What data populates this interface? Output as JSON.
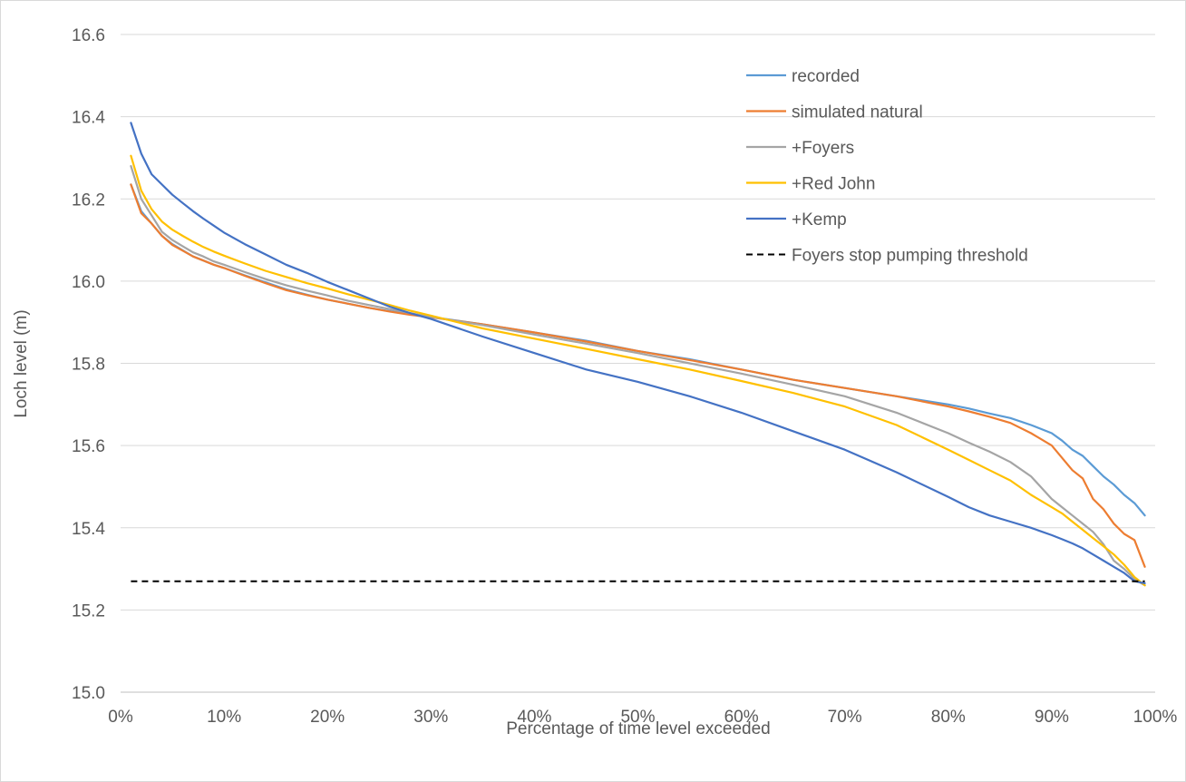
{
  "chart_data": {
    "type": "line",
    "title": "",
    "xlabel": "Percentage of time level exceeded",
    "ylabel": "Loch level (m)",
    "xlim": [
      0,
      100
    ],
    "ylim": [
      15.0,
      16.6
    ],
    "x_ticks": [
      0,
      10,
      20,
      30,
      40,
      50,
      60,
      70,
      80,
      90,
      100
    ],
    "x_tick_labels": [
      "0%",
      "10%",
      "20%",
      "30%",
      "40%",
      "50%",
      "60%",
      "70%",
      "80%",
      "90%",
      "100%"
    ],
    "y_ticks": [
      15.0,
      15.2,
      15.4,
      15.6,
      15.8,
      16.0,
      16.2,
      16.4,
      16.6
    ],
    "y_tick_labels": [
      "15.0",
      "15.2",
      "15.4",
      "15.6",
      "15.8",
      "16.0",
      "16.2",
      "16.4",
      "16.6"
    ],
    "grid": "horizontal",
    "legend_position": "top-right",
    "x": [
      1,
      2,
      3,
      4,
      5,
      6,
      7,
      8,
      9,
      10,
      12,
      14,
      16,
      18,
      20,
      22,
      24,
      26,
      28,
      30,
      35,
      40,
      45,
      50,
      55,
      60,
      65,
      70,
      75,
      80,
      82,
      84,
      86,
      88,
      90,
      91,
      92,
      93,
      94,
      95,
      96,
      97,
      98,
      99
    ],
    "series": [
      {
        "name": "recorded",
        "color": "#5B9BD5",
        "dashed": false,
        "values": [
          16.235,
          16.17,
          16.14,
          16.11,
          16.09,
          16.075,
          16.06,
          16.05,
          16.04,
          16.032,
          16.014,
          15.997,
          15.98,
          15.967,
          15.955,
          15.945,
          15.935,
          15.927,
          15.92,
          15.913,
          15.895,
          15.875,
          15.855,
          15.83,
          15.81,
          15.785,
          15.76,
          15.74,
          15.72,
          15.7,
          15.69,
          15.678,
          15.667,
          15.65,
          15.63,
          15.612,
          15.59,
          15.575,
          15.55,
          15.525,
          15.505,
          15.48,
          15.46,
          15.43
        ]
      },
      {
        "name": "simulated natural",
        "color": "#ED7D31",
        "dashed": false,
        "values": [
          16.235,
          16.165,
          16.14,
          16.11,
          16.088,
          16.074,
          16.06,
          16.05,
          16.04,
          16.032,
          16.013,
          15.995,
          15.978,
          15.966,
          15.955,
          15.945,
          15.935,
          15.926,
          15.918,
          15.912,
          15.895,
          15.875,
          15.853,
          15.83,
          15.808,
          15.785,
          15.76,
          15.74,
          15.72,
          15.695,
          15.683,
          15.67,
          15.655,
          15.63,
          15.6,
          15.57,
          15.54,
          15.52,
          15.47,
          15.445,
          15.41,
          15.385,
          15.37,
          15.305
        ]
      },
      {
        "name": "+Foyers",
        "color": "#A5A5A5",
        "dashed": false,
        "values": [
          16.28,
          16.2,
          16.16,
          16.12,
          16.1,
          16.085,
          16.07,
          16.06,
          16.048,
          16.04,
          16.022,
          16.005,
          15.99,
          15.977,
          15.965,
          15.952,
          15.942,
          15.932,
          15.922,
          15.913,
          15.893,
          15.87,
          15.848,
          15.825,
          15.8,
          15.775,
          15.748,
          15.72,
          15.68,
          15.63,
          15.607,
          15.585,
          15.56,
          15.525,
          15.47,
          15.45,
          15.43,
          15.41,
          15.39,
          15.36,
          15.32,
          15.3,
          15.275,
          15.26
        ]
      },
      {
        "name": "+Red John",
        "color": "#FFC000",
        "dashed": false,
        "values": [
          16.305,
          16.22,
          16.175,
          16.145,
          16.125,
          16.11,
          16.096,
          16.083,
          16.072,
          16.062,
          16.043,
          16.025,
          16.01,
          15.995,
          15.982,
          15.968,
          15.955,
          15.942,
          15.928,
          15.916,
          15.885,
          15.86,
          15.835,
          15.81,
          15.785,
          15.757,
          15.728,
          15.695,
          15.65,
          15.59,
          15.565,
          15.54,
          15.515,
          15.48,
          15.45,
          15.435,
          15.415,
          15.395,
          15.375,
          15.355,
          15.335,
          15.31,
          15.28,
          15.26
        ]
      },
      {
        "name": "+Kemp",
        "color": "#4472C4",
        "dashed": false,
        "values": [
          16.385,
          16.31,
          16.26,
          16.235,
          16.21,
          16.19,
          16.17,
          16.152,
          16.135,
          16.118,
          16.09,
          16.065,
          16.04,
          16.02,
          15.998,
          15.978,
          15.958,
          15.938,
          15.922,
          15.908,
          15.865,
          15.825,
          15.785,
          15.755,
          15.72,
          15.68,
          15.635,
          15.59,
          15.535,
          15.475,
          15.45,
          15.43,
          15.415,
          15.4,
          15.382,
          15.372,
          15.362,
          15.35,
          15.335,
          15.32,
          15.305,
          15.29,
          15.27,
          15.265
        ]
      }
    ],
    "threshold": {
      "name": "Foyers stop pumping threshold",
      "color": "#000000",
      "dashed": true,
      "x": [
        1,
        99
      ],
      "values": [
        15.27,
        15.27
      ]
    }
  }
}
